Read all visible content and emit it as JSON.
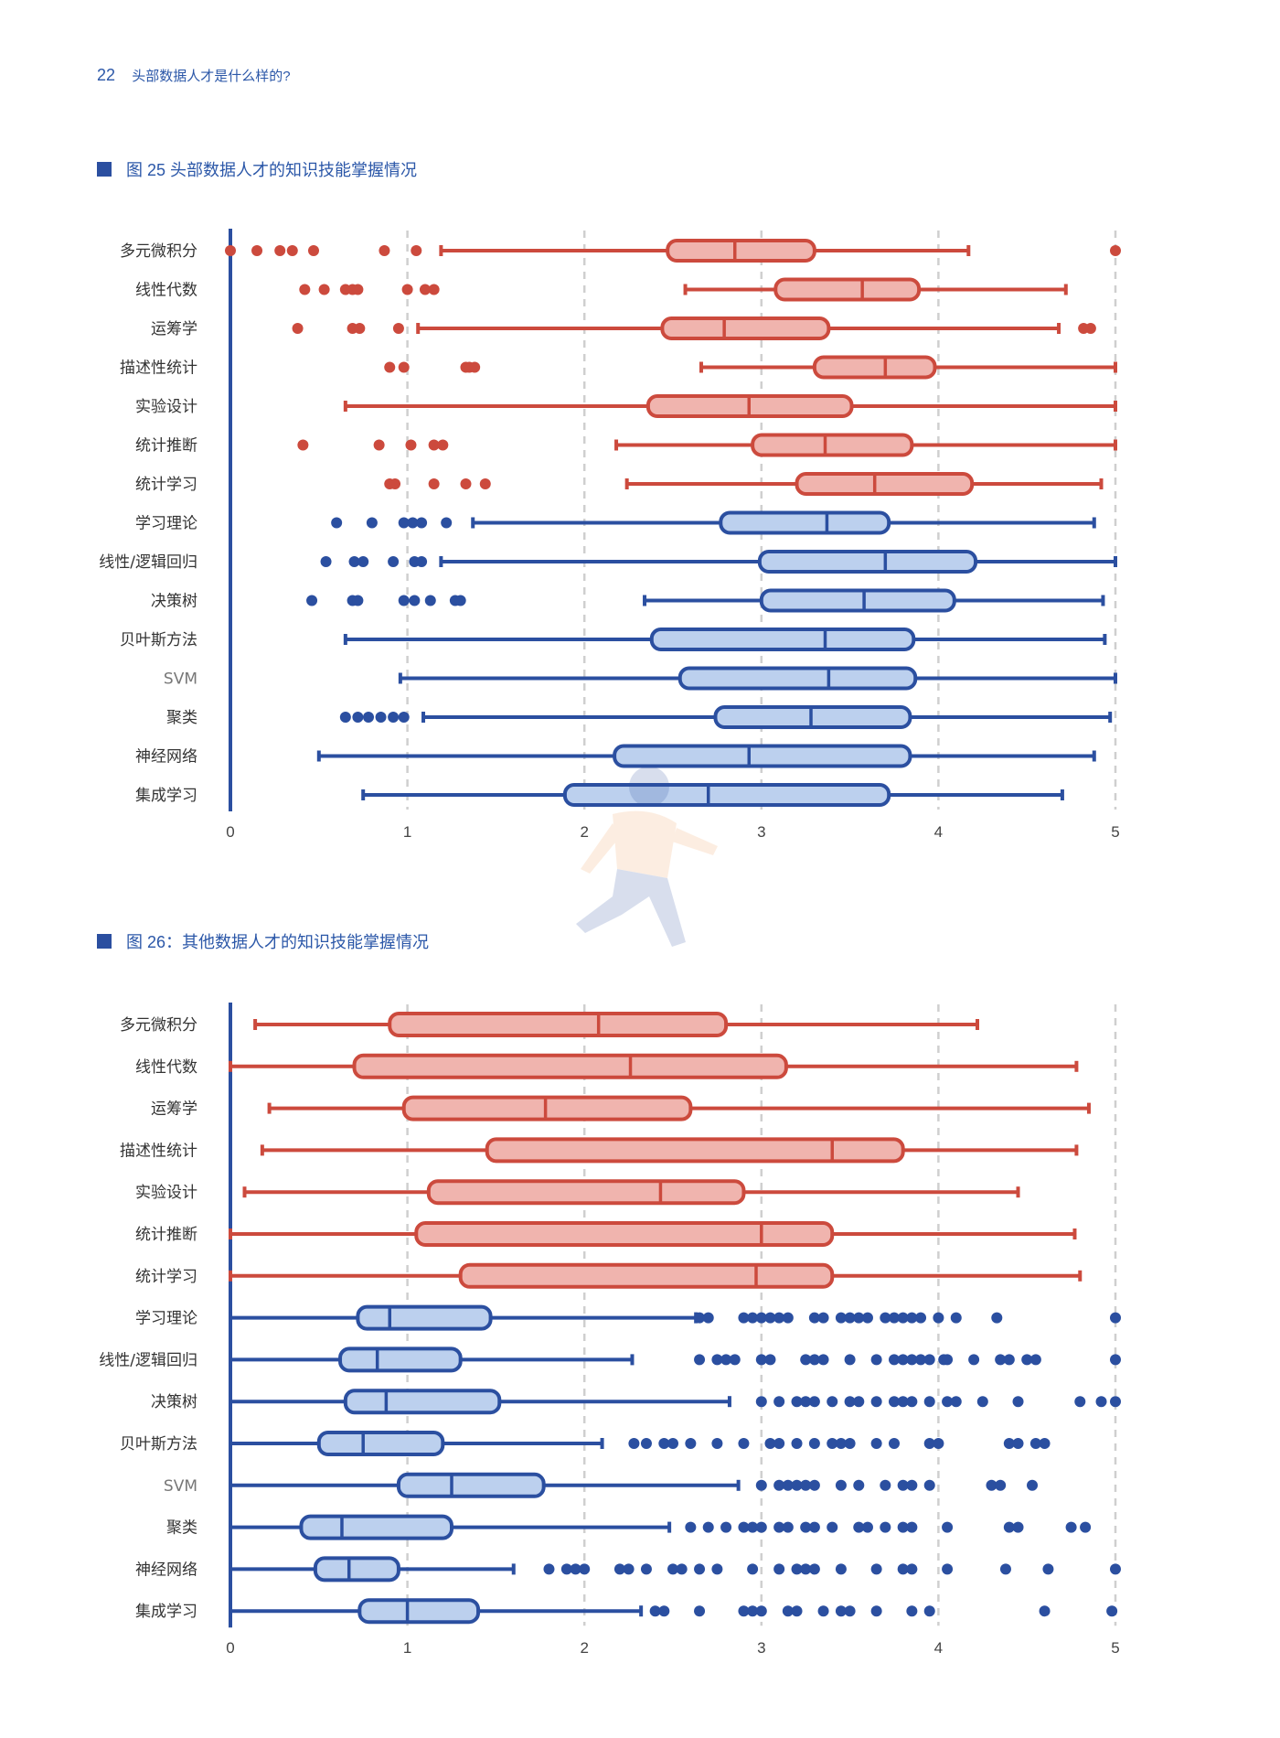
{
  "header": {
    "page_number": "22",
    "section_title": "头部数据人才是什么样的?"
  },
  "colors": {
    "accent": "#2b57a8",
    "red_stroke": "#cc4a3d",
    "red_fill": "#f0b4ae",
    "blue_stroke": "#2b4fa0",
    "blue_fill": "#bcd0ee",
    "grid": "#cfcfcf"
  },
  "chart_data": [
    {
      "type": "boxplot",
      "title": "图 25  头部数据人才的知识技能掌握情况",
      "orientation": "horizontal",
      "xlim": [
        0,
        5
      ],
      "xticks": [
        "0",
        "1",
        "2",
        "3",
        "4",
        "5"
      ],
      "grid": "vertical dashed",
      "categories": [
        "多元微积分",
        "线性代数",
        "运筹学",
        "描述性统计",
        "实验设计",
        "统计推断",
        "统计学习",
        "学习理论",
        "线性/逻辑回归",
        "决策树",
        "贝叶斯方法",
        "SVM",
        "聚类",
        "神经网络",
        "集成学习"
      ],
      "groups": [
        "red",
        "red",
        "red",
        "red",
        "red",
        "red",
        "red",
        "blue",
        "blue",
        "blue",
        "blue",
        "blue",
        "blue",
        "blue",
        "blue"
      ],
      "boxes": [
        {
          "whisker_low": 1.19,
          "q1": 2.47,
          "median": 2.85,
          "q3": 3.3,
          "whisker_high": 4.17,
          "outliers": [
            0,
            0.15,
            0.28,
            0.35,
            0.47,
            0.87,
            1.05,
            5.0
          ]
        },
        {
          "whisker_low": 2.57,
          "q1": 3.08,
          "median": 3.57,
          "q3": 3.89,
          "whisker_high": 4.72,
          "outliers": [
            0.42,
            0.53,
            0.65,
            0.69,
            0.72,
            1.0,
            1.1,
            1.15
          ]
        },
        {
          "whisker_low": 1.06,
          "q1": 2.44,
          "median": 2.79,
          "q3": 3.38,
          "whisker_high": 4.68,
          "outliers": [
            0.38,
            0.69,
            0.73,
            0.95,
            4.82,
            4.86
          ]
        },
        {
          "whisker_low": 2.66,
          "q1": 3.3,
          "median": 3.7,
          "q3": 3.98,
          "whisker_high": 5.0,
          "outliers": [
            0.9,
            0.98,
            1.33,
            1.35,
            1.38
          ]
        },
        {
          "whisker_low": 0.65,
          "q1": 2.36,
          "median": 2.93,
          "q3": 3.51,
          "whisker_high": 5.0,
          "outliers": []
        },
        {
          "whisker_low": 2.18,
          "q1": 2.95,
          "median": 3.36,
          "q3": 3.85,
          "whisker_high": 5.0,
          "outliers": [
            0.41,
            0.84,
            1.02,
            1.15,
            1.2
          ]
        },
        {
          "whisker_low": 2.24,
          "q1": 3.2,
          "median": 3.64,
          "q3": 4.19,
          "whisker_high": 4.92,
          "outliers": [
            0.9,
            0.93,
            1.15,
            1.33,
            1.44
          ]
        },
        {
          "whisker_low": 1.37,
          "q1": 2.77,
          "median": 3.37,
          "q3": 3.72,
          "whisker_high": 4.88,
          "outliers": [
            0.6,
            0.8,
            0.98,
            1.03,
            1.08,
            1.22
          ]
        },
        {
          "whisker_low": 1.19,
          "q1": 2.99,
          "median": 3.7,
          "q3": 4.21,
          "whisker_high": 5.0,
          "outliers": [
            0.54,
            0.7,
            0.75,
            0.92,
            1.04,
            1.08
          ]
        },
        {
          "whisker_low": 2.34,
          "q1": 3.0,
          "median": 3.58,
          "q3": 4.09,
          "whisker_high": 4.93,
          "outliers": [
            0.46,
            0.69,
            0.72,
            0.98,
            1.04,
            1.13,
            1.27,
            1.3
          ]
        },
        {
          "whisker_low": 0.65,
          "q1": 2.38,
          "median": 3.36,
          "q3": 3.86,
          "whisker_high": 4.94,
          "outliers": []
        },
        {
          "whisker_low": 0.96,
          "q1": 2.54,
          "median": 3.38,
          "q3": 3.87,
          "whisker_high": 5.0,
          "outliers": []
        },
        {
          "whisker_low": 1.09,
          "q1": 2.74,
          "median": 3.28,
          "q3": 3.84,
          "whisker_high": 4.97,
          "outliers": [
            0.65,
            0.72,
            0.78,
            0.85,
            0.92,
            0.98
          ]
        },
        {
          "whisker_low": 0.5,
          "q1": 2.17,
          "median": 2.93,
          "q3": 3.84,
          "whisker_high": 4.88,
          "outliers": []
        },
        {
          "whisker_low": 0.75,
          "q1": 1.89,
          "median": 2.7,
          "q3": 3.72,
          "whisker_high": 4.7,
          "outliers": []
        }
      ]
    },
    {
      "type": "boxplot",
      "title": "图 26：其他数据人才的知识技能掌握情况",
      "orientation": "horizontal",
      "xlim": [
        0,
        5
      ],
      "xticks": [
        "0",
        "1",
        "2",
        "3",
        "4",
        "5"
      ],
      "grid": "vertical dashed",
      "categories": [
        "多元微积分",
        "线性代数",
        "运筹学",
        "描述性统计",
        "实验设计",
        "统计推断",
        "统计学习",
        "学习理论",
        "线性/逻辑回归",
        "决策树",
        "贝叶斯方法",
        "SVM",
        "聚类",
        "神经网络",
        "集成学习"
      ],
      "groups": [
        "red",
        "red",
        "red",
        "red",
        "red",
        "red",
        "red",
        "blue",
        "blue",
        "blue",
        "blue",
        "blue",
        "blue",
        "blue",
        "blue"
      ],
      "boxes": [
        {
          "whisker_low": 0.14,
          "q1": 0.9,
          "median": 2.08,
          "q3": 2.8,
          "whisker_high": 4.22,
          "outliers": []
        },
        {
          "whisker_low": 0.0,
          "q1": 0.7,
          "median": 2.26,
          "q3": 3.14,
          "whisker_high": 4.78,
          "outliers": []
        },
        {
          "whisker_low": 0.22,
          "q1": 0.98,
          "median": 1.78,
          "q3": 2.6,
          "whisker_high": 4.85,
          "outliers": []
        },
        {
          "whisker_low": 0.18,
          "q1": 1.45,
          "median": 3.4,
          "q3": 3.8,
          "whisker_high": 4.78,
          "outliers": []
        },
        {
          "whisker_low": 0.08,
          "q1": 1.12,
          "median": 2.43,
          "q3": 2.9,
          "whisker_high": 4.45,
          "outliers": []
        },
        {
          "whisker_low": 0.0,
          "q1": 1.05,
          "median": 3.0,
          "q3": 3.4,
          "whisker_high": 4.77,
          "outliers": []
        },
        {
          "whisker_low": 0.0,
          "q1": 1.3,
          "median": 2.97,
          "q3": 3.4,
          "whisker_high": 4.8,
          "outliers": []
        },
        {
          "whisker_low": 0.0,
          "q1": 0.72,
          "median": 0.9,
          "q3": 1.47,
          "whisker_high": 2.63,
          "outliers": [
            2.65,
            2.7,
            2.9,
            2.95,
            3.0,
            3.05,
            3.1,
            3.15,
            3.3,
            3.35,
            3.45,
            3.5,
            3.55,
            3.6,
            3.7,
            3.75,
            3.8,
            3.85,
            3.9,
            4.0,
            4.1,
            4.33,
            5.0
          ]
        },
        {
          "whisker_low": 0.0,
          "q1": 0.62,
          "median": 0.83,
          "q3": 1.3,
          "whisker_high": 2.27,
          "outliers": [
            2.65,
            2.75,
            2.8,
            2.85,
            3.0,
            3.05,
            3.25,
            3.3,
            3.35,
            3.5,
            3.65,
            3.75,
            3.8,
            3.85,
            3.9,
            3.95,
            4.03,
            4.05,
            4.2,
            4.35,
            4.4,
            4.5,
            4.55,
            5.0
          ]
        },
        {
          "whisker_low": 0.0,
          "q1": 0.65,
          "median": 0.88,
          "q3": 1.52,
          "whisker_high": 2.82,
          "outliers": [
            3.0,
            3.1,
            3.2,
            3.25,
            3.3,
            3.4,
            3.5,
            3.55,
            3.65,
            3.75,
            3.8,
            3.85,
            3.95,
            4.05,
            4.1,
            4.25,
            4.45,
            4.8,
            4.92,
            5.0
          ]
        },
        {
          "whisker_low": 0.0,
          "q1": 0.5,
          "median": 0.75,
          "q3": 1.2,
          "whisker_high": 2.1,
          "outliers": [
            2.28,
            2.35,
            2.45,
            2.5,
            2.6,
            2.75,
            2.9,
            3.05,
            3.1,
            3.2,
            3.3,
            3.4,
            3.45,
            3.5,
            3.65,
            3.75,
            3.95,
            4.0,
            4.4,
            4.45,
            4.55,
            4.6
          ]
        },
        {
          "whisker_low": 0.0,
          "q1": 0.95,
          "median": 1.25,
          "q3": 1.77,
          "whisker_high": 2.87,
          "outliers": [
            3.0,
            3.1,
            3.15,
            3.2,
            3.25,
            3.3,
            3.45,
            3.55,
            3.7,
            3.8,
            3.85,
            3.95,
            4.3,
            4.35,
            4.53
          ]
        },
        {
          "whisker_low": 0.0,
          "q1": 0.4,
          "median": 0.63,
          "q3": 1.25,
          "whisker_high": 2.48,
          "outliers": [
            2.6,
            2.7,
            2.8,
            2.9,
            2.95,
            3.0,
            3.1,
            3.15,
            3.25,
            3.3,
            3.4,
            3.55,
            3.6,
            3.7,
            3.8,
            3.85,
            4.05,
            4.4,
            4.45,
            4.75,
            4.83
          ]
        },
        {
          "whisker_low": 0.0,
          "q1": 0.48,
          "median": 0.67,
          "q3": 0.95,
          "whisker_high": 1.6,
          "outliers": [
            1.8,
            1.9,
            1.95,
            2.0,
            2.2,
            2.25,
            2.35,
            2.5,
            2.55,
            2.65,
            2.75,
            2.95,
            3.1,
            3.2,
            3.25,
            3.3,
            3.45,
            3.65,
            3.8,
            3.85,
            4.05,
            4.38,
            4.62,
            5.0
          ]
        },
        {
          "whisker_low": 0.0,
          "q1": 0.73,
          "median": 1.0,
          "q3": 1.4,
          "whisker_high": 2.32,
          "outliers": [
            2.4,
            2.45,
            2.65,
            2.9,
            2.95,
            3.0,
            3.15,
            3.2,
            3.35,
            3.45,
            3.5,
            3.65,
            3.85,
            3.95,
            4.6,
            4.98
          ]
        }
      ]
    }
  ]
}
